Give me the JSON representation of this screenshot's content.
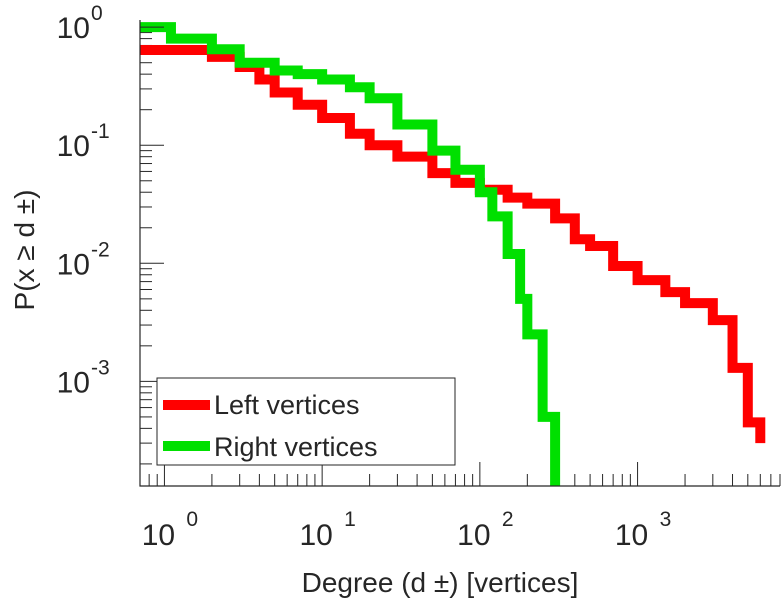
{
  "chart_data": {
    "type": "line",
    "xscale": "log",
    "yscale": "log",
    "xlabel": "Degree (d ±) [vertices]",
    "ylabel": "P(x ≥ d ±)",
    "xlim": [
      0.7,
      8000
    ],
    "ylim": [
      0.00013,
      1.15
    ],
    "x_ticks": [
      {
        "value": 1,
        "base": "10",
        "exp": "0"
      },
      {
        "value": 10,
        "base": "10",
        "exp": "1"
      },
      {
        "value": 100,
        "base": "10",
        "exp": "2"
      },
      {
        "value": 1000,
        "base": "10",
        "exp": "3"
      }
    ],
    "y_ticks": [
      {
        "value": 1,
        "base": "10",
        "exp": "0"
      },
      {
        "value": 0.1,
        "base": "10",
        "exp": "-1"
      },
      {
        "value": 0.01,
        "base": "10",
        "exp": "-2"
      },
      {
        "value": 0.001,
        "base": "10",
        "exp": "-3"
      }
    ],
    "legend": {
      "placement": "bottom-left",
      "entries": [
        "Left vertices",
        "Right vertices"
      ]
    },
    "series": [
      {
        "name": "Left vertices",
        "color": "#ff0000",
        "x": [
          0.7,
          1,
          2,
          3,
          4,
          5,
          7,
          10,
          15,
          20,
          30,
          50,
          70,
          100,
          150,
          200,
          300,
          400,
          500,
          700,
          1000,
          1500,
          2000,
          3000,
          4000,
          5000,
          6000
        ],
        "y": [
          0.64,
          0.64,
          0.56,
          0.46,
          0.36,
          0.28,
          0.22,
          0.17,
          0.125,
          0.1,
          0.08,
          0.058,
          0.048,
          0.042,
          0.036,
          0.032,
          0.024,
          0.016,
          0.014,
          0.0095,
          0.0072,
          0.0057,
          0.0046,
          0.0033,
          0.0013,
          0.00045,
          0.0003
        ]
      },
      {
        "name": "Right vertices",
        "color": "#00e000",
        "x": [
          0.7,
          1.1,
          1.1,
          2,
          3,
          5,
          7,
          10,
          15,
          20,
          30,
          50,
          70,
          100,
          120,
          150,
          180,
          200,
          250,
          300
        ],
        "y": [
          1.0,
          1.0,
          0.8,
          0.65,
          0.5,
          0.43,
          0.4,
          0.36,
          0.31,
          0.25,
          0.15,
          0.09,
          0.062,
          0.04,
          0.025,
          0.012,
          0.005,
          0.0025,
          0.0005,
          0.00013
        ]
      }
    ]
  }
}
